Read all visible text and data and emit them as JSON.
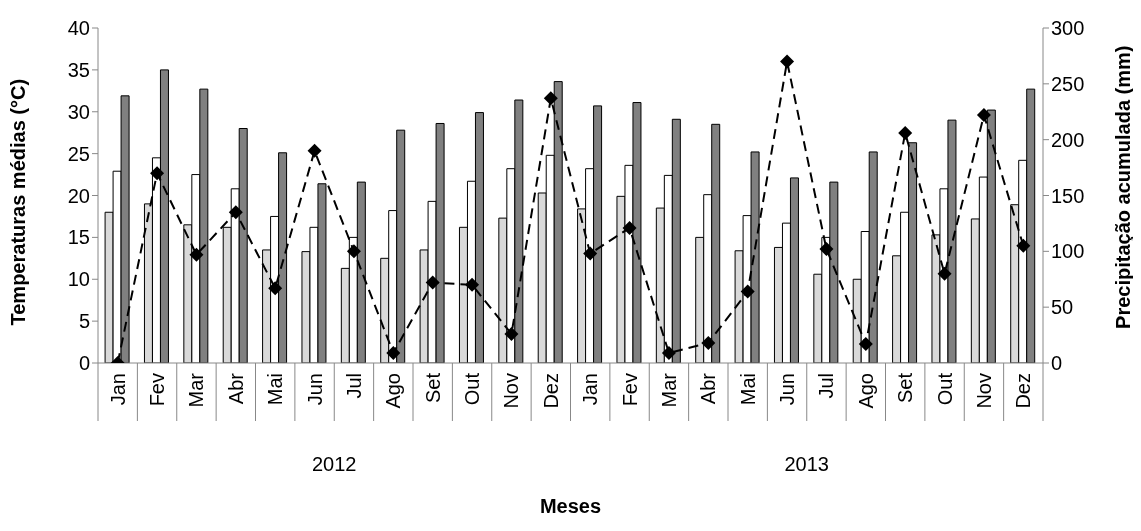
{
  "chart_data": {
    "type": "bar",
    "xlabel": "Meses",
    "ylabel": "Temperaturas médias (°C)",
    "y2label": "Precipitação acumulada (mm)",
    "categories": [
      "Jan",
      "Fev",
      "Mar",
      "Abr",
      "Mai",
      "Jun",
      "Jul",
      "Ago",
      "Set",
      "Out",
      "Nov",
      "Dez",
      "Jan",
      "Fev",
      "Mar",
      "Abr",
      "Mai",
      "Jun",
      "Jul",
      "Ago",
      "Set",
      "Out",
      "Nov",
      "Dez"
    ],
    "annotations": [
      "2012",
      "2013"
    ],
    "series": [
      {
        "color": "#d9d9d9",
        "values": [
          18.0,
          19.0,
          16.5,
          16.2,
          13.5,
          13.3,
          11.3,
          12.5,
          13.5,
          16.2,
          17.3,
          20.3,
          18.4,
          19.9,
          18.5,
          15.0,
          13.4,
          13.8,
          10.6,
          10.0,
          12.8,
          15.3,
          17.2,
          18.9
        ]
      },
      {
        "color": "#ffffff",
        "values": [
          22.9,
          24.5,
          22.5,
          20.8,
          17.5,
          16.2,
          15.0,
          18.2,
          19.3,
          21.7,
          23.2,
          24.8,
          23.2,
          23.6,
          22.4,
          20.1,
          17.6,
          16.7,
          15.0,
          15.7,
          18.0,
          20.8,
          22.2,
          24.2
        ]
      },
      {
        "color": "#808080",
        "values": [
          31.9,
          35.0,
          32.7,
          28.0,
          25.1,
          21.4,
          21.6,
          27.8,
          28.6,
          29.9,
          31.4,
          33.6,
          30.7,
          31.1,
          29.1,
          28.5,
          25.2,
          22.1,
          21.6,
          25.2,
          26.3,
          29.0,
          30.2,
          32.7
        ]
      },
      {
        "type": "line",
        "axis": "y2",
        "color": "#000000",
        "values": [
          0,
          170,
          97,
          135,
          67,
          190,
          100,
          9,
          72,
          70,
          26,
          237,
          98,
          121,
          9,
          18,
          64,
          270,
          102,
          17,
          206,
          80,
          222,
          105
        ]
      }
    ],
    "ylim": [
      0,
      40
    ],
    "yticks": [
      0,
      5,
      10,
      15,
      20,
      25,
      30,
      35,
      40
    ],
    "y2lim": [
      0,
      300
    ],
    "y2ticks": [
      0,
      50,
      100,
      150,
      200,
      250,
      300
    ],
    "grid": false,
    "legend": false,
    "marker": "diamond",
    "line_style": "dashed"
  }
}
